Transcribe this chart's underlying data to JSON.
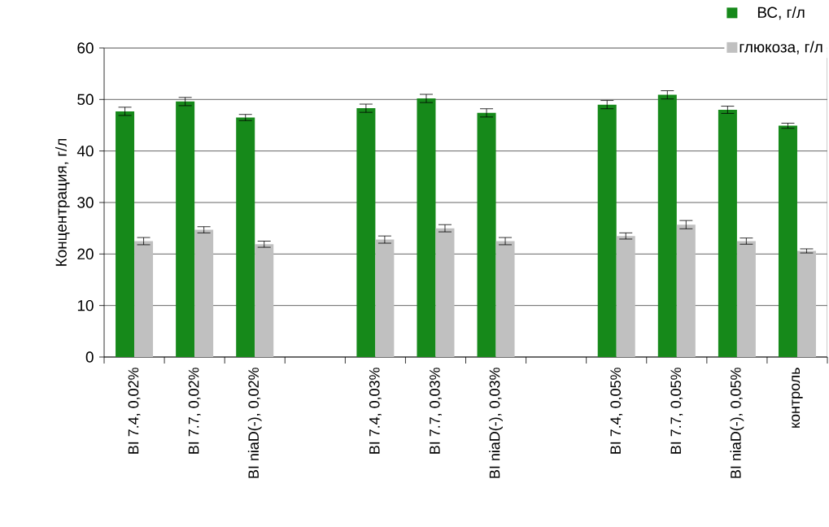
{
  "chart_data": {
    "type": "bar",
    "ylabel": "Концентрация, г/л",
    "categories": [
      "BI 7.4, 0,02%",
      "BI 7.7, 0,02%",
      "BI niaD(-), 0,02%",
      null,
      "BI 7.4, 0,03%",
      "BI 7.7, 0,03%",
      "BI niaD(-), 0,03%",
      null,
      "BI 7.4, 0,05%",
      "BI 7.7, 0,05%",
      "BI niaD(-), 0,05%",
      "контроль"
    ],
    "series": [
      {
        "name": "ВС, г/л",
        "color": "#16891a",
        "values": [
          47.7,
          49.6,
          46.5,
          null,
          48.3,
          50.2,
          47.4,
          null,
          49.0,
          50.9,
          48.0,
          44.9
        ],
        "errors": [
          0.8,
          0.8,
          0.6,
          null,
          0.8,
          0.8,
          0.8,
          null,
          0.8,
          0.8,
          0.7,
          0.5
        ]
      },
      {
        "name": "глюкоза, г/л",
        "color": "#c0c0c0",
        "values": [
          22.5,
          24.7,
          21.9,
          null,
          22.8,
          25.0,
          22.5,
          null,
          23.5,
          25.7,
          22.5,
          20.6
        ],
        "errors": [
          0.7,
          0.6,
          0.6,
          null,
          0.7,
          0.7,
          0.7,
          null,
          0.6,
          0.8,
          0.6,
          0.4
        ]
      }
    ],
    "ylim": [
      0,
      60
    ],
    "yticks": [
      0,
      10,
      20,
      30,
      40,
      50,
      60
    ],
    "grid": "y",
    "legend": "top right"
  }
}
